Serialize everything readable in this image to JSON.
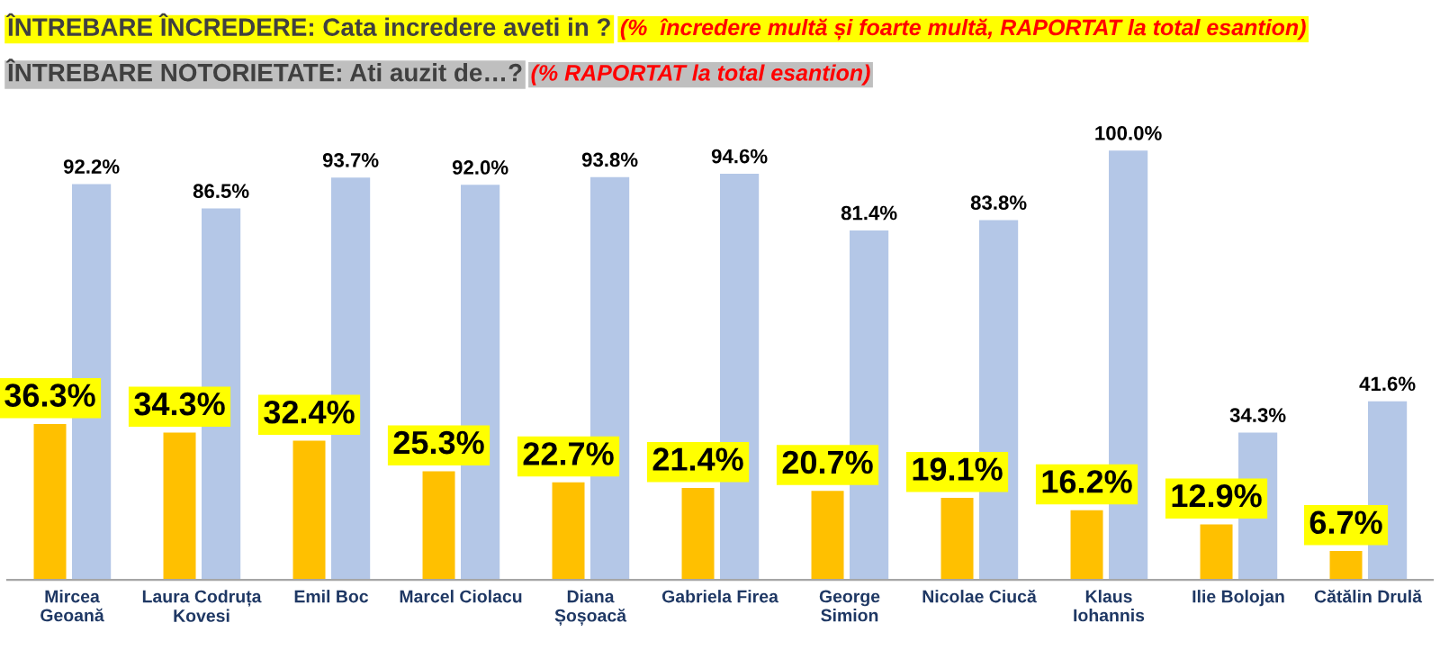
{
  "chart_data": {
    "type": "bar",
    "title": "ÎNTREBARE ÎNCREDERE: Cata incredere aveti in ?",
    "subtitle": "ÎNTREBARE NOTORIETATE: Ati auzit de…?",
    "annotations": [
      "(%  încredere multă și foarte multă, RAPORTAT la total esantion)",
      "(% RAPORTAT la total esantion)"
    ],
    "categories": [
      "Mircea\nGeoană",
      "Laura Codruța\nKovesi",
      "Emil Boc",
      "Marcel Ciolacu",
      "Diana\nȘoșoacă",
      "Gabriela Firea",
      "George\nSimion",
      "Nicolae Ciucă",
      "Klaus\nIohannis",
      "Ilie Bolojan",
      "Cătălin Drulă"
    ],
    "series": [
      {
        "color": "#ffc000",
        "values": [
          36.3,
          34.3,
          32.4,
          25.3,
          22.7,
          21.4,
          20.7,
          19.1,
          16.2,
          12.9,
          6.7
        ],
        "value_labels": [
          "36.3%",
          "34.3%",
          "32.4%",
          "25.3%",
          "22.7%",
          "21.4%",
          "20.7%",
          "19.1%",
          "16.2%",
          "12.9%",
          "6.7%"
        ]
      },
      {
        "color": "#b4c7e7",
        "values": [
          92.2,
          86.5,
          93.7,
          92.0,
          93.8,
          94.6,
          81.4,
          83.8,
          100.0,
          34.3,
          41.6
        ],
        "value_labels": [
          "92.2%",
          "86.5%",
          "93.7%",
          "92.0%",
          "93.8%",
          "94.6%",
          "81.4%",
          "83.8%",
          "100.0%",
          "34.3%",
          "41.6%"
        ]
      }
    ]
  }
}
